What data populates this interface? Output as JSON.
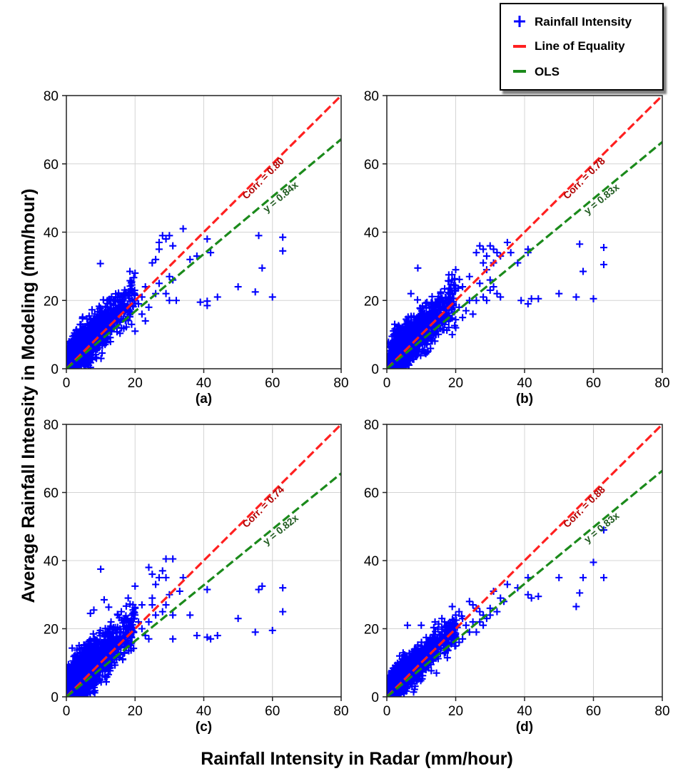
{
  "colors": {
    "points": "#0000ff",
    "equality": "#ff2020",
    "ols": "#1b8a1b",
    "corr_text": "#b00000",
    "ols_text": "#1f5a1f"
  },
  "figure": {
    "ylabel": "Average Rainfall Intensity in Modeling (mm/hour)",
    "xlabel": "Rainfall Intensity in Radar (mm/hour)"
  },
  "legend": {
    "items": [
      {
        "label": "Rainfall Intensity",
        "icon": "plus-marker-icon"
      },
      {
        "label": "Line of Equality",
        "icon": "red-dash-icon"
      },
      {
        "label": "OLS",
        "icon": "green-dash-icon"
      }
    ]
  },
  "chart_data": [
    {
      "type": "scatter",
      "panel": "(a)",
      "xlim": [
        0,
        80
      ],
      "ylim": [
        0,
        80
      ],
      "xticks": [
        "0",
        "20",
        "40",
        "60",
        "80"
      ],
      "yticks": [
        "0",
        "20",
        "40",
        "60",
        "80"
      ],
      "grid": true,
      "corr_label": "Corr. = 0.80",
      "ols_label": "y = 0.84x",
      "ols_slope": 0.84,
      "dense_cluster": {
        "seed": 11,
        "n": 1300,
        "slope": 0.98,
        "noise": 2.8
      },
      "series": [
        {
          "name": "Rainfall Intensity",
          "points": [
            [
              9.9,
              30.8
            ],
            [
              18.5,
              28.5
            ],
            [
              20,
              28
            ],
            [
              23,
              24
            ],
            [
              25,
              31
            ],
            [
              26,
              32
            ],
            [
              27,
              37
            ],
            [
              27,
              35
            ],
            [
              28,
              39
            ],
            [
              29,
              38
            ],
            [
              30,
              39
            ],
            [
              31,
              36
            ],
            [
              30,
              27
            ],
            [
              31,
              26
            ],
            [
              27,
              25
            ],
            [
              26,
              22
            ],
            [
              29,
              22
            ],
            [
              30,
              20
            ],
            [
              32,
              20
            ],
            [
              34,
              41
            ],
            [
              36,
              32
            ],
            [
              38,
              33
            ],
            [
              41,
              38
            ],
            [
              42,
              34
            ],
            [
              39,
              19.5
            ],
            [
              41,
              18.5
            ],
            [
              41,
              19.8
            ],
            [
              44,
              21
            ],
            [
              50,
              24
            ],
            [
              55,
              22.5
            ],
            [
              56,
              39
            ],
            [
              57,
              29.5
            ],
            [
              60,
              21
            ],
            [
              63,
              38.5
            ],
            [
              63,
              34.5
            ],
            [
              22,
              21
            ],
            [
              21,
              19
            ],
            [
              24,
              18
            ],
            [
              22,
              16
            ],
            [
              23,
              14
            ],
            [
              19,
              13
            ],
            [
              20,
              11
            ],
            [
              17,
              22
            ],
            [
              15,
              21
            ],
            [
              14,
              20
            ],
            [
              13,
              19
            ],
            [
              12,
              18
            ]
          ]
        }
      ]
    },
    {
      "type": "scatter",
      "panel": "(b)",
      "xlim": [
        0,
        80
      ],
      "ylim": [
        0,
        80
      ],
      "xticks": [
        "0",
        "20",
        "40",
        "60",
        "80"
      ],
      "yticks": [
        "0",
        "20",
        "40",
        "60",
        "80"
      ],
      "grid": true,
      "corr_label": "Corr. = 0.78",
      "ols_label": "y = 0.83x",
      "ols_slope": 0.83,
      "dense_cluster": {
        "seed": 23,
        "n": 1300,
        "slope": 0.95,
        "noise": 3.1
      },
      "series": [
        {
          "name": "Rainfall Intensity",
          "points": [
            [
              7,
              22
            ],
            [
              9,
              29.5
            ],
            [
              18,
              27.5
            ],
            [
              20,
              29
            ],
            [
              19,
              26
            ],
            [
              22,
              24
            ],
            [
              24,
              27
            ],
            [
              26,
              34
            ],
            [
              27,
              36
            ],
            [
              28,
              35
            ],
            [
              29,
              33
            ],
            [
              30,
              36
            ],
            [
              31,
              35
            ],
            [
              32,
              34
            ],
            [
              33,
              33
            ],
            [
              29,
              29
            ],
            [
              31,
              31
            ],
            [
              27,
              25
            ],
            [
              30,
              23
            ],
            [
              33,
              21
            ],
            [
              35,
              37
            ],
            [
              28,
              21
            ],
            [
              29,
              20
            ],
            [
              32,
              22
            ],
            [
              24,
              20
            ],
            [
              26,
              20
            ],
            [
              30,
              26
            ],
            [
              31,
              24
            ],
            [
              28,
              31
            ],
            [
              36,
              34
            ],
            [
              38,
              31
            ],
            [
              41,
              35
            ],
            [
              41,
              34
            ],
            [
              39,
              20
            ],
            [
              41,
              19
            ],
            [
              42,
              20.5
            ],
            [
              44,
              20.5
            ],
            [
              50,
              22
            ],
            [
              55,
              21
            ],
            [
              56,
              36.5
            ],
            [
              57,
              28.5
            ],
            [
              60,
              20.5
            ],
            [
              63,
              35.5
            ],
            [
              63,
              30.5
            ],
            [
              21,
              18
            ],
            [
              23,
              17
            ],
            [
              22,
              15
            ],
            [
              25,
              16
            ],
            [
              20,
              12
            ],
            [
              19,
              10
            ],
            [
              18,
              14
            ],
            [
              6,
              12
            ]
          ]
        }
      ]
    },
    {
      "type": "scatter",
      "panel": "(c)",
      "xlim": [
        0,
        80
      ],
      "ylim": [
        0,
        80
      ],
      "xticks": [
        "0",
        "20",
        "40",
        "60",
        "80"
      ],
      "yticks": [
        "0",
        "20",
        "40",
        "60",
        "80"
      ],
      "grid": true,
      "corr_label": "Corr. = 0.74",
      "ols_label": "y = 0.82x",
      "ols_slope": 0.82,
      "dense_cluster": {
        "seed": 37,
        "n": 1400,
        "slope": 1.0,
        "noise": 3.6
      },
      "series": [
        {
          "name": "Rainfall Intensity",
          "points": [
            [
              10,
              37.5
            ],
            [
              11,
              28.5
            ],
            [
              7,
              24.5
            ],
            [
              8,
              25.5
            ],
            [
              18,
              29
            ],
            [
              20,
              32.5
            ],
            [
              20,
              26
            ],
            [
              22,
              27
            ],
            [
              24,
              38
            ],
            [
              25,
              36
            ],
            [
              27,
              35
            ],
            [
              26,
              33
            ],
            [
              29,
              40.5
            ],
            [
              31,
              40.5
            ],
            [
              28,
              37
            ],
            [
              29,
              35
            ],
            [
              30,
              30
            ],
            [
              25,
              29
            ],
            [
              26,
              24
            ],
            [
              28,
              25
            ],
            [
              29,
              27
            ],
            [
              31,
              24
            ],
            [
              33,
              31
            ],
            [
              34,
              35
            ],
            [
              36,
              24
            ],
            [
              38,
              18
            ],
            [
              41,
              31.5
            ],
            [
              41,
              17.5
            ],
            [
              42,
              17
            ],
            [
              44,
              18
            ],
            [
              50,
              23
            ],
            [
              55,
              19
            ],
            [
              56,
              31.5
            ],
            [
              57,
              32.5
            ],
            [
              60,
              19.5
            ],
            [
              63,
              32
            ],
            [
              63,
              25
            ],
            [
              31,
              17
            ],
            [
              24,
              17
            ],
            [
              22,
              20
            ],
            [
              21,
              22
            ],
            [
              19,
              24
            ],
            [
              23,
              18
            ],
            [
              17,
              23
            ],
            [
              16,
              25
            ],
            [
              15,
              24
            ],
            [
              13,
              22
            ],
            [
              24,
              22
            ],
            [
              25,
              27
            ]
          ]
        }
      ]
    },
    {
      "type": "scatter",
      "panel": "(d)",
      "xlim": [
        0,
        80
      ],
      "ylim": [
        0,
        80
      ],
      "xticks": [
        "0",
        "20",
        "40",
        "60",
        "80"
      ],
      "yticks": [
        "0",
        "20",
        "40",
        "60",
        "80"
      ],
      "grid": true,
      "corr_label": "Corr. = 0.88",
      "ols_label": "y = 0.83x",
      "ols_slope": 0.83,
      "dense_cluster": {
        "seed": 51,
        "n": 1300,
        "slope": 0.92,
        "noise": 2.3
      },
      "series": [
        {
          "name": "Rainfall Intensity",
          "points": [
            [
              6,
              21
            ],
            [
              10,
              21
            ],
            [
              14,
              22
            ],
            [
              16,
              23
            ],
            [
              19,
              26.5
            ],
            [
              20,
              24
            ],
            [
              21,
              25
            ],
            [
              22,
              23
            ],
            [
              24,
              28
            ],
            [
              25,
              27
            ],
            [
              26,
              26
            ],
            [
              27,
              25
            ],
            [
              28,
              24
            ],
            [
              30,
              24
            ],
            [
              31,
              31
            ],
            [
              32,
              25
            ],
            [
              29,
              23
            ],
            [
              28,
              21
            ],
            [
              26,
              19
            ],
            [
              35,
              33
            ],
            [
              38,
              32
            ],
            [
              41,
              35
            ],
            [
              41,
              30
            ],
            [
              42,
              29
            ],
            [
              44,
              29.5
            ],
            [
              50,
              35
            ],
            [
              55,
              26.5
            ],
            [
              56,
              30.5
            ],
            [
              57,
              35
            ],
            [
              60,
              39.5
            ],
            [
              63,
              49
            ],
            [
              63,
              35
            ],
            [
              23,
              21
            ],
            [
              24,
              19
            ],
            [
              22,
              17
            ],
            [
              21,
              16
            ],
            [
              20,
              15
            ],
            [
              18,
              15
            ],
            [
              25,
              22
            ],
            [
              27,
              22
            ],
            [
              30,
              26
            ],
            [
              33,
              29
            ],
            [
              34,
              28
            ]
          ]
        }
      ]
    }
  ]
}
